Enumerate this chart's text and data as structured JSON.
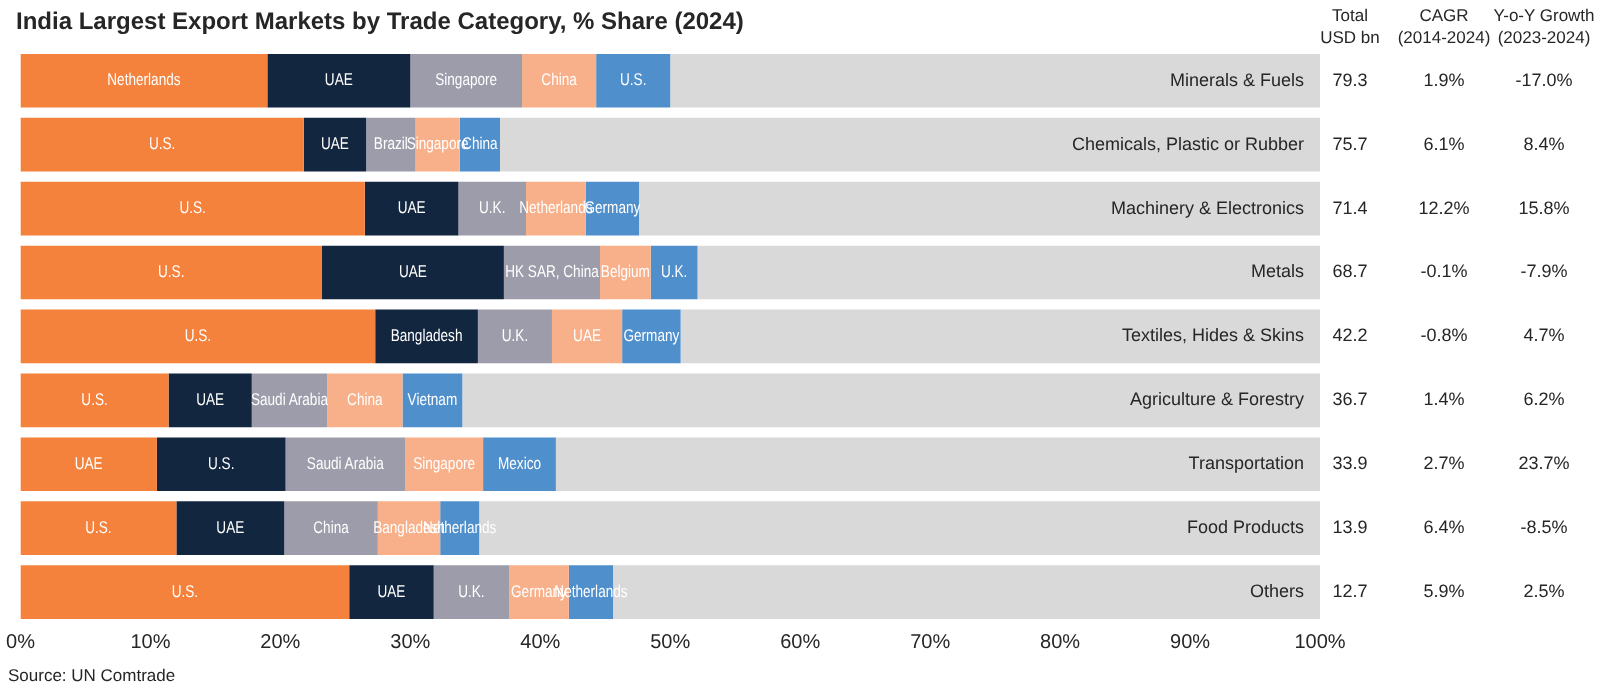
{
  "chart_data": {
    "type": "bar",
    "orientation": "horizontal",
    "stacked": true,
    "title": "India Largest Export Markets by Trade Category, % Share (2024)",
    "categories": [
      "Minerals & Fuels",
      "Chemicals, Plastic or Rubber",
      "Machinery & Electronics",
      "Metals",
      "Textiles, Hides & Skins",
      "Agriculture & Forestry",
      "Transportation",
      "Food Products",
      "Others"
    ],
    "series": [
      {
        "color": "#f4823d",
        "values": [
          19.0,
          21.8,
          26.5,
          23.2,
          27.3,
          11.4,
          10.5,
          12.0,
          25.3
        ],
        "value_labels": [
          "Netherlands",
          "U.S.",
          "U.S.",
          "U.S.",
          "U.S.",
          "U.S.",
          "UAE",
          "U.S.",
          "U.S."
        ]
      },
      {
        "color": "#12263f",
        "values": [
          11.0,
          4.8,
          7.2,
          14.0,
          7.9,
          6.4,
          9.9,
          8.3,
          6.5
        ],
        "value_labels": [
          "UAE",
          "UAE",
          "UAE",
          "UAE",
          "Bangladesh",
          "UAE",
          "U.S.",
          "UAE",
          "UAE"
        ]
      },
      {
        "color": "#9c9caa",
        "values": [
          8.6,
          3.8,
          5.2,
          7.4,
          5.7,
          5.8,
          9.2,
          7.2,
          5.8
        ],
        "value_labels": [
          "Singapore",
          "Brazil",
          "U.K.",
          "HK SAR, China",
          "U.K.",
          "Saudi Arabia",
          "Saudi Arabia",
          "China",
          "U.K."
        ]
      },
      {
        "color": "#f8b08a",
        "values": [
          5.7,
          3.4,
          4.6,
          3.9,
          5.4,
          5.8,
          6.0,
          4.8,
          4.6
        ],
        "value_labels": [
          "China",
          "Singapore",
          "Netherlands",
          "Belgium",
          "UAE",
          "China",
          "Singapore",
          "Bangladesh",
          "Germany"
        ]
      },
      {
        "color": "#4f8fcb",
        "values": [
          5.7,
          3.1,
          4.1,
          3.6,
          4.5,
          4.6,
          5.6,
          3.0,
          3.4
        ],
        "value_labels": [
          "U.S.",
          "China",
          "Germany",
          "U.K.",
          "Germany",
          "Vietnam",
          "Mexico",
          "Netherlands",
          "Netherlands"
        ]
      },
      {
        "color": "#d9d9d9",
        "values": [
          50.0,
          63.1,
          52.4,
          47.9,
          49.2,
          66.0,
          58.8,
          64.7,
          54.4
        ]
      }
    ],
    "xlim": [
      0,
      100
    ],
    "xticks": [
      {
        "value": 0,
        "label": "0%"
      },
      {
        "value": 10,
        "label": "10%"
      },
      {
        "value": 20,
        "label": "20%"
      },
      {
        "value": 30,
        "label": "30%"
      },
      {
        "value": 40,
        "label": "40%"
      },
      {
        "value": 50,
        "label": "50%"
      },
      {
        "value": 60,
        "label": "60%"
      },
      {
        "value": 70,
        "label": "70%"
      },
      {
        "value": 80,
        "label": "80%"
      },
      {
        "value": 90,
        "label": "90%"
      },
      {
        "value": 100,
        "label": "100%"
      }
    ],
    "grid": false,
    "legend": false,
    "annotations": [
      "Total\nUSD bn",
      "CAGR\n(2014-2024)",
      "Y-o-Y Growth\n(2023-2024)",
      "79.3",
      "1.9%",
      "-17.0%",
      "75.7",
      "6.1%",
      "8.4%",
      "71.4",
      "12.2%",
      "15.8%",
      "68.7",
      "-0.1%",
      "-7.9%",
      "42.2",
      "-0.8%",
      "4.7%",
      "36.7",
      "1.4%",
      "6.2%",
      "33.9",
      "2.7%",
      "23.7%",
      "13.9",
      "6.4%",
      "-8.5%",
      "12.7",
      "5.9%",
      "2.5%",
      "Source: UN Comtrade"
    ]
  }
}
